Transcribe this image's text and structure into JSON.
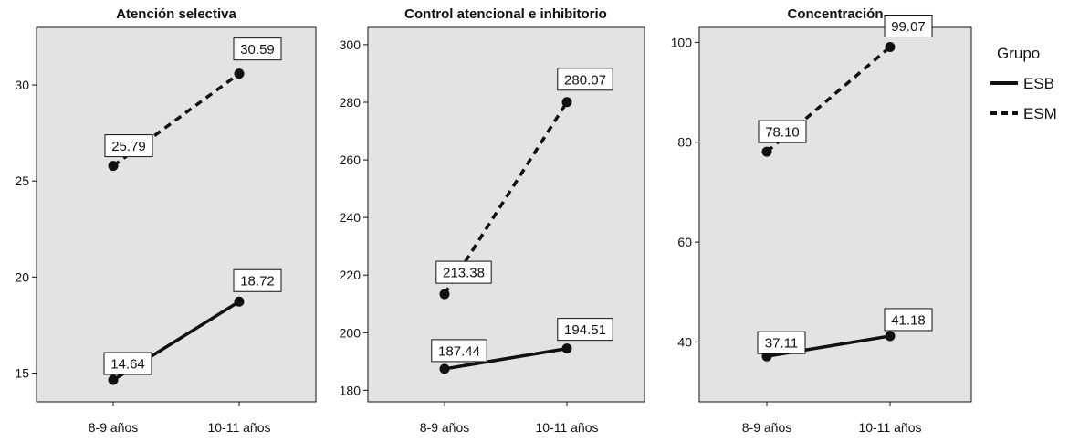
{
  "legend": {
    "title": "Grupo",
    "items": [
      {
        "name": "ESB",
        "style": "solid"
      },
      {
        "name": "ESM",
        "style": "dashed"
      }
    ]
  },
  "colors": {
    "plot_background": "#e3e3e3",
    "line": "#111111",
    "label_box": "#ffffff"
  },
  "chart_data": [
    {
      "type": "line",
      "title": "Atención selectiva",
      "categories": [
        "8-9 años",
        "10-11 años"
      ],
      "yticks": [
        15,
        20,
        25,
        30
      ],
      "ylim": [
        13.5,
        33.0
      ],
      "grid": false,
      "series": [
        {
          "name": "ESB",
          "values": [
            14.64,
            18.72
          ],
          "labels": [
            "14.64",
            "18.72"
          ]
        },
        {
          "name": "ESM",
          "values": [
            25.79,
            30.59
          ],
          "labels": [
            "25.79",
            "30.59"
          ]
        }
      ]
    },
    {
      "type": "line",
      "title": "Control atencional e inhibitorio",
      "categories": [
        "8-9 años",
        "10-11 años"
      ],
      "yticks": [
        180,
        200,
        220,
        240,
        260,
        280,
        300
      ],
      "ylim": [
        176.0,
        306.0
      ],
      "grid": false,
      "series": [
        {
          "name": "ESB",
          "values": [
            187.44,
            194.51
          ],
          "labels": [
            "187.44",
            "194.51"
          ]
        },
        {
          "name": "ESM",
          "values": [
            213.38,
            280.07
          ],
          "labels": [
            "213.38",
            "280.07"
          ]
        }
      ]
    },
    {
      "type": "line",
      "title": "Concentración",
      "categories": [
        "8-9 años",
        "10-11 años"
      ],
      "yticks": [
        40,
        60,
        80,
        100
      ],
      "ylim": [
        28.0,
        103.0
      ],
      "grid": false,
      "series": [
        {
          "name": "ESB",
          "values": [
            37.11,
            41.18
          ],
          "labels": [
            "37.11",
            "41.18"
          ]
        },
        {
          "name": "ESM",
          "values": [
            78.1,
            99.07
          ],
          "labels": [
            "78.10",
            "99.07"
          ]
        }
      ]
    }
  ]
}
